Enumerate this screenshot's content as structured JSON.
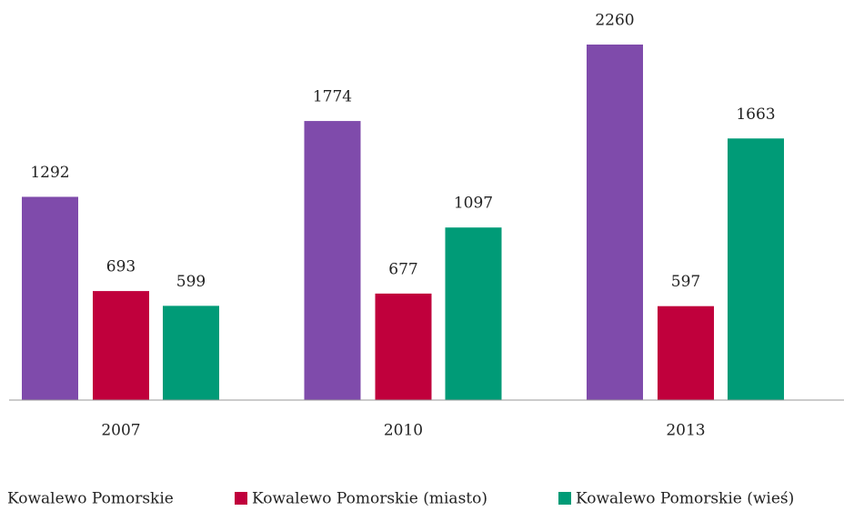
{
  "chart_data": {
    "type": "bar",
    "categories": [
      "2007",
      "2010",
      "2013"
    ],
    "series": [
      {
        "name": "Kowalewo Pomorskie",
        "color": "#7f4bab",
        "values": [
          1292,
          1774,
          2260
        ]
      },
      {
        "name": "Kowalewo Pomorskie (miasto)",
        "color": "#c0003c",
        "values": [
          693,
          677,
          597
        ]
      },
      {
        "name": "Kowalewo Pomorskie (wieś)",
        "color": "#009b77",
        "values": [
          599,
          1097,
          1663
        ]
      }
    ],
    "legend": "bottom"
  }
}
